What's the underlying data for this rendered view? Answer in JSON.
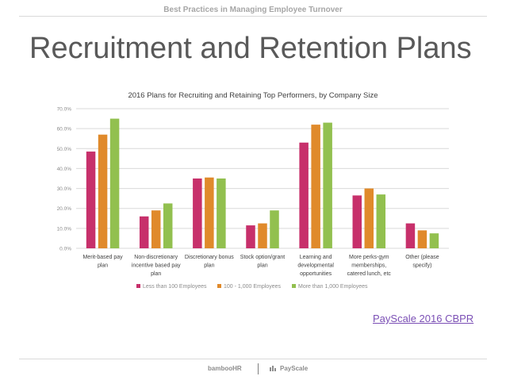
{
  "header": {
    "top_title": "Best Practices in Managing Employee Turnover"
  },
  "slide": {
    "title": "Recruitment and Retention Plans"
  },
  "source": {
    "link_text": "PayScale 2016 CBPR"
  },
  "footer": {
    "bamboo_logo": "bambooHR",
    "payscale_logo": "PayScale"
  },
  "colors": {
    "series": [
      "#c7306b",
      "#e08a2b",
      "#92c04f"
    ],
    "grid": "#d9d9d9",
    "link": "#7b4fb5"
  },
  "chart_data": {
    "type": "bar",
    "title": "2016 Plans for Recruiting and Retaining Top Performers, by Company Size",
    "categories": [
      "Merit-based pay plan",
      "Non-discretionary incentive based pay plan",
      "Discretionary bonus plan",
      "Stock option/grant plan",
      "Learning and developmental opportunities",
      "More perks-gym memberships, catered lunch, etc",
      "Other (please specify)"
    ],
    "category_lines": [
      [
        "Merit-based pay",
        "plan"
      ],
      [
        "Non-discretionary",
        "incentive based pay",
        "plan"
      ],
      [
        "Discretionary bonus",
        "plan"
      ],
      [
        "Stock option/grant",
        "plan"
      ],
      [
        "Learning and",
        "developmental",
        "opportunities"
      ],
      [
        "More perks-gym",
        "memberships,",
        "catered lunch, etc"
      ],
      [
        "Other (please",
        "specify)"
      ]
    ],
    "series": [
      {
        "name": "Less than 100 Employees",
        "values": [
          48.5,
          16.0,
          35.0,
          11.5,
          53.0,
          26.5,
          12.5
        ]
      },
      {
        "name": "100 - 1,000 Employees",
        "values": [
          57.0,
          19.0,
          35.5,
          12.5,
          62.0,
          30.0,
          9.0
        ]
      },
      {
        "name": "More than 1,000 Employees",
        "values": [
          65.0,
          22.5,
          35.0,
          19.0,
          63.0,
          27.0,
          7.5
        ]
      }
    ],
    "ylim": [
      0,
      70
    ],
    "yticks": [
      "0.0%",
      "10.0%",
      "20.0%",
      "30.0%",
      "40.0%",
      "50.0%",
      "60.0%",
      "70.0%"
    ],
    "grid": true,
    "legend_position": "bottom"
  }
}
